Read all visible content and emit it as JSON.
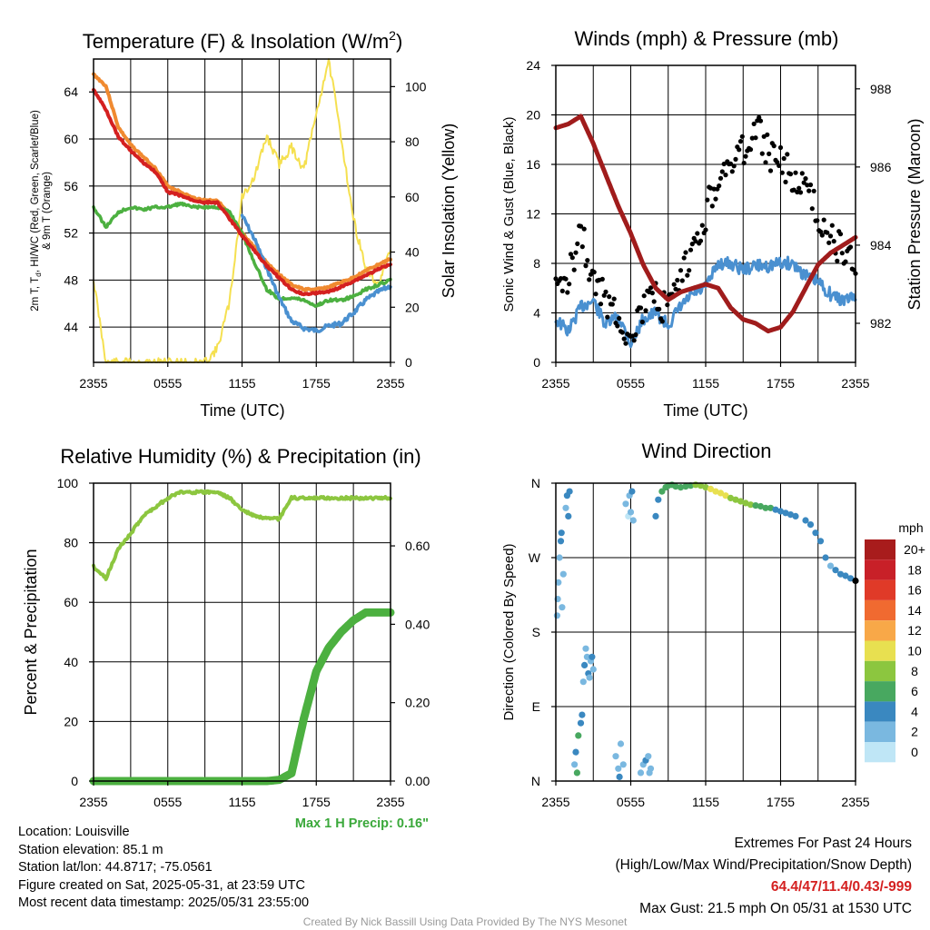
{
  "colors": {
    "red": "#d42020",
    "orange": "#f08a30",
    "green": "#4cb040",
    "blue": "#4a90d0",
    "yellow": "#f5e050",
    "maroon": "#a01c1c",
    "black": "#000000",
    "rh_green": "#8cc63f",
    "precip_green": "#4cb040",
    "highlight_red": "#d42020"
  },
  "time_ticks": [
    "2355",
    "0555",
    "1155",
    "1755",
    "2355"
  ],
  "chart_data": [
    {
      "id": "temp",
      "type": "line",
      "title": "Temperature (F) & Insolation (W/m",
      "title_sup": "2",
      "title_close": ")",
      "xlabel": "Time (UTC)",
      "ylabel_left_1": "2m T, T",
      "ylabel_left_sub": "d",
      "ylabel_left_2": ", HI/WC (Red, Green, Scarlet/Blue)",
      "ylabel_left_3": "& 9m T (Orange)",
      "ylabel_right": "Solar Insolation (Yellow)",
      "x_range_hours": [
        0,
        24
      ],
      "ylim_left": [
        41,
        66.8
      ],
      "ylim_right": [
        0,
        110
      ],
      "yticks_left": [
        "44",
        "48",
        "52",
        "56",
        "60",
        "64"
      ],
      "yticks_right": [
        "0",
        "20",
        "40",
        "60",
        "80",
        "100"
      ],
      "x_hours": [
        0,
        1,
        2,
        3,
        4,
        5,
        6,
        7,
        8,
        9,
        10,
        11,
        12,
        13,
        14,
        15,
        16,
        17,
        18,
        19,
        20,
        21,
        22,
        23,
        24
      ],
      "series": [
        {
          "key": "orange",
          "axis": "left",
          "width": 4,
          "values": [
            65.5,
            64.5,
            61,
            59.5,
            58.5,
            57.5,
            56,
            55.5,
            55,
            54.8,
            54.8,
            53.5,
            52,
            50.8,
            49.5,
            48.5,
            47.6,
            47.2,
            47.2,
            47.4,
            47.8,
            48.2,
            48.8,
            49.3,
            49.8
          ]
        },
        {
          "key": "red",
          "axis": "left",
          "width": 4,
          "values": [
            64.2,
            62.5,
            60.2,
            59,
            58,
            57.2,
            55.5,
            55.2,
            54.8,
            54.6,
            54.6,
            53.2,
            51.8,
            50.5,
            49.2,
            48.2,
            47.2,
            46.8,
            46.9,
            47,
            47.4,
            47.9,
            48.4,
            48.9,
            49.4
          ]
        },
        {
          "key": "green",
          "axis": "left",
          "width": 3.5,
          "values": [
            54.2,
            52.5,
            53.8,
            54.2,
            54,
            54.2,
            54.2,
            54.5,
            54.2,
            54.2,
            54.2,
            53.8,
            52,
            49.5,
            47.2,
            46.4,
            46.5,
            46.3,
            45.8,
            46.3,
            46.3,
            46.6,
            47.2,
            47.6,
            48
          ]
        },
        {
          "key": "blue",
          "axis": "left",
          "width": 3.5,
          "values": [
            null,
            null,
            null,
            null,
            null,
            null,
            null,
            null,
            null,
            null,
            null,
            null,
            53.5,
            51.5,
            49,
            46.5,
            44.5,
            43.9,
            43.7,
            44.1,
            44.3,
            45.2,
            46.3,
            47,
            47.5
          ]
        },
        {
          "key": "yellow",
          "axis": "right",
          "width": 2,
          "values": [
            30,
            0,
            0,
            0,
            0,
            0,
            0,
            0,
            0,
            0,
            5,
            22,
            60,
            67,
            82,
            72,
            78,
            70,
            90,
            110,
            82,
            52,
            34,
            28,
            40
          ]
        }
      ]
    },
    {
      "id": "wind",
      "type": "line",
      "title": "Winds (mph) & Pressure (mb)",
      "xlabel": "Time (UTC)",
      "ylabel_left": "Sonic Wind & Gust (Blue, Black)",
      "ylabel_right": "Station Pressure (Maroon)",
      "x_range_hours": [
        0,
        24
      ],
      "ylim_left": [
        0,
        24
      ],
      "ylim_right": [
        981,
        988.6
      ],
      "yticks_left": [
        "0",
        "4",
        "8",
        "12",
        "16",
        "20",
        "24"
      ],
      "yticks_right": [
        "982",
        "984",
        "986",
        "988"
      ],
      "x_hours": [
        0,
        1,
        2,
        3,
        4,
        5,
        6,
        7,
        8,
        9,
        10,
        11,
        12,
        13,
        14,
        15,
        16,
        17,
        18,
        19,
        20,
        21,
        22,
        23,
        24
      ],
      "series": [
        {
          "key": "blue",
          "name": "Sonic Wind",
          "axis": "left",
          "width": 3,
          "values": [
            3.5,
            2.5,
            4.5,
            5,
            3,
            3.8,
            1.5,
            3.5,
            4,
            3,
            4.5,
            5.5,
            6,
            8,
            8,
            7.5,
            7.8,
            7.8,
            8,
            8,
            7,
            6.5,
            5.5,
            5,
            5.3
          ]
        },
        {
          "key": "black",
          "name": "Gust",
          "axis": "left",
          "width": 0,
          "values": [
            5.5,
            7,
            11,
            6.5,
            5,
            4,
            1.8,
            4.5,
            5,
            4,
            6.5,
            9,
            12,
            15,
            16,
            17,
            19,
            17,
            16,
            15,
            14,
            12,
            10,
            9,
            8
          ]
        },
        {
          "key": "maroon",
          "name": "Station Pressure",
          "axis": "right",
          "width": 5,
          "values": [
            987,
            987.1,
            987.3,
            986.6,
            985.8,
            985,
            984.3,
            983.5,
            982.9,
            982.6,
            982.8,
            982.9,
            983,
            982.9,
            982.4,
            982.1,
            982,
            981.8,
            981.9,
            982.3,
            982.9,
            983.5,
            983.8,
            984,
            984.2
          ]
        }
      ]
    },
    {
      "id": "rh",
      "type": "line",
      "title": "Relative Humidity (%) & Precipitation (in)",
      "ylabel_left": "Percent & Precipitation",
      "x_range_hours": [
        0,
        24
      ],
      "ylim_left": [
        0,
        100
      ],
      "ylim_right": [
        0,
        0.76
      ],
      "yticks_left": [
        "0",
        "20",
        "40",
        "60",
        "80",
        "100"
      ],
      "yticks_right": [
        "0.00",
        "0.20",
        "0.40",
        "0.60"
      ],
      "x_hours": [
        0,
        1,
        2,
        3,
        4,
        5,
        6,
        7,
        8,
        9,
        10,
        11,
        12,
        13,
        14,
        15,
        16,
        17,
        18,
        19,
        20,
        21,
        22,
        23,
        24
      ],
      "series": [
        {
          "key": "rh_green",
          "name": "Relative Humidity",
          "axis": "left",
          "width": 4,
          "values": [
            72,
            68,
            78,
            83,
            89,
            92,
            95,
            97,
            97,
            97,
            97,
            95,
            91,
            89,
            88,
            88,
            95,
            95,
            95,
            95,
            95,
            95,
            95,
            95,
            95
          ]
        },
        {
          "key": "precip_green",
          "name": "Precipitation",
          "axis": "right",
          "width": 9,
          "values": [
            0,
            0,
            0,
            0,
            0,
            0,
            0,
            0,
            0,
            0,
            0,
            0,
            0,
            0,
            0,
            0.003,
            0.02,
            0.16,
            0.28,
            0.34,
            0.38,
            0.41,
            0.43,
            0.43,
            0.43
          ]
        }
      ],
      "annotation": "Max 1 H Precip: 0.16\""
    },
    {
      "id": "winddir",
      "type": "scatter",
      "title": "Wind Direction",
      "ylabel_left": "Direction (Colored By Speed)",
      "x_range_hours": [
        0,
        24
      ],
      "ylim": [
        0,
        360
      ],
      "yticks_left": [
        "N",
        "E",
        "S",
        "W",
        "N"
      ],
      "colorbar": {
        "unit": "mph",
        "labels": [
          "20+",
          "18",
          "16",
          "14",
          "12",
          "10",
          "8",
          "6",
          "4",
          "2",
          "0"
        ],
        "colors": [
          "#a81c1c",
          "#c82028",
          "#e03a28",
          "#f06a30",
          "#f8a848",
          "#e8e050",
          "#8cc63f",
          "#48a860",
          "#3a88c0",
          "#7ab8e0",
          "#bfe6f6"
        ]
      },
      "points": [
        [
          0.1,
          200
        ],
        [
          0.15,
          220
        ],
        [
          0.2,
          240
        ],
        [
          0.3,
          270
        ],
        [
          0.4,
          290
        ],
        [
          0.45,
          300
        ],
        [
          0.5,
          210
        ],
        [
          0.6,
          250
        ],
        [
          0.8,
          330
        ],
        [
          0.9,
          345
        ],
        [
          1.0,
          320
        ],
        [
          1.1,
          350
        ],
        [
          1.5,
          20
        ],
        [
          1.6,
          35
        ],
        [
          1.7,
          10
        ],
        [
          1.8,
          55
        ],
        [
          2.0,
          70
        ],
        [
          2.1,
          80
        ],
        [
          2.2,
          120
        ],
        [
          2.3,
          140
        ],
        [
          2.4,
          160
        ],
        [
          2.5,
          150
        ],
        [
          2.6,
          130
        ],
        [
          2.7,
          125
        ],
        [
          2.8,
          145
        ],
        [
          2.9,
          150
        ],
        [
          3.0,
          135
        ],
        [
          4.8,
          30
        ],
        [
          5.0,
          15
        ],
        [
          5.1,
          5
        ],
        [
          5.2,
          45
        ],
        [
          5.4,
          20
        ],
        [
          5.6,
          335
        ],
        [
          5.8,
          320
        ],
        [
          5.9,
          345
        ],
        [
          6.0,
          325
        ],
        [
          6.1,
          350
        ],
        [
          6.2,
          315
        ],
        [
          6.8,
          10
        ],
        [
          7.0,
          20
        ],
        [
          7.2,
          25
        ],
        [
          7.4,
          30
        ],
        [
          7.5,
          10
        ],
        [
          7.6,
          15
        ],
        [
          8.0,
          320
        ],
        [
          8.2,
          340
        ],
        [
          8.5,
          350
        ],
        [
          8.8,
          355
        ],
        [
          9.0,
          357
        ],
        [
          9.3,
          358
        ],
        [
          9.6,
          356
        ],
        [
          10,
          355
        ],
        [
          10.4,
          356
        ],
        [
          10.8,
          357
        ],
        [
          11.2,
          358
        ],
        [
          11.6,
          357
        ],
        [
          12.0,
          355
        ],
        [
          12.4,
          353
        ],
        [
          12.8,
          350
        ],
        [
          13.2,
          348
        ],
        [
          13.6,
          345
        ],
        [
          14,
          342
        ],
        [
          14.4,
          340
        ],
        [
          14.8,
          338
        ],
        [
          15.2,
          336
        ],
        [
          15.6,
          334
        ],
        [
          16,
          333
        ],
        [
          16.4,
          332
        ],
        [
          16.8,
          330
        ],
        [
          17.2,
          330
        ],
        [
          17.6,
          328
        ],
        [
          18,
          326
        ],
        [
          18.4,
          324
        ],
        [
          18.8,
          322
        ],
        [
          19.2,
          320
        ],
        [
          20,
          315
        ],
        [
          20.4,
          310
        ],
        [
          20.8,
          300
        ],
        [
          21.2,
          290
        ],
        [
          21.6,
          270
        ],
        [
          22,
          260
        ],
        [
          22.4,
          255
        ],
        [
          22.8,
          250
        ],
        [
          23.2,
          248
        ],
        [
          23.6,
          245
        ],
        [
          24,
          242
        ]
      ],
      "point_speeds": [
        2,
        3,
        3,
        2,
        4,
        4,
        3,
        2,
        3,
        4,
        5,
        4,
        3,
        4,
        7,
        6,
        4,
        4,
        3,
        4,
        3,
        3,
        4,
        3,
        3,
        4,
        3,
        2,
        3,
        4,
        2,
        3,
        2,
        1,
        3,
        2,
        4,
        3,
        2,
        3,
        4,
        3,
        2,
        3,
        4,
        5,
        6,
        7,
        7,
        7,
        6,
        7,
        7,
        6,
        8,
        8,
        9,
        10,
        10,
        10,
        10,
        9,
        9,
        8,
        8,
        8,
        7,
        7,
        7,
        6,
        5,
        5,
        5,
        4,
        4,
        4,
        4,
        4,
        4,
        4,
        3,
        4,
        4,
        5,
        5
      ]
    }
  ],
  "footer": {
    "location": "Location: Louisville",
    "elevation": "Station elevation: 85.1 m",
    "latlon": "Station lat/lon: 44.8717; -75.0561",
    "created": "Figure created on Sat, 2025-05-31, at 23:59 UTC",
    "recent": "Most recent data timestamp: 2025/05/31 23:55:00",
    "extremes_title": "Extremes For Past 24 Hours",
    "extremes_keys": "(High/Low/Max Wind/Precipitation/Snow Depth)",
    "extremes_values": "64.4/47/11.4/0.43/-999",
    "max_gust": "Max Gust: 21.5 mph On 05/31 at 1530 UTC",
    "credit": "Created By Nick Bassill Using Data Provided By The NYS Mesonet"
  }
}
